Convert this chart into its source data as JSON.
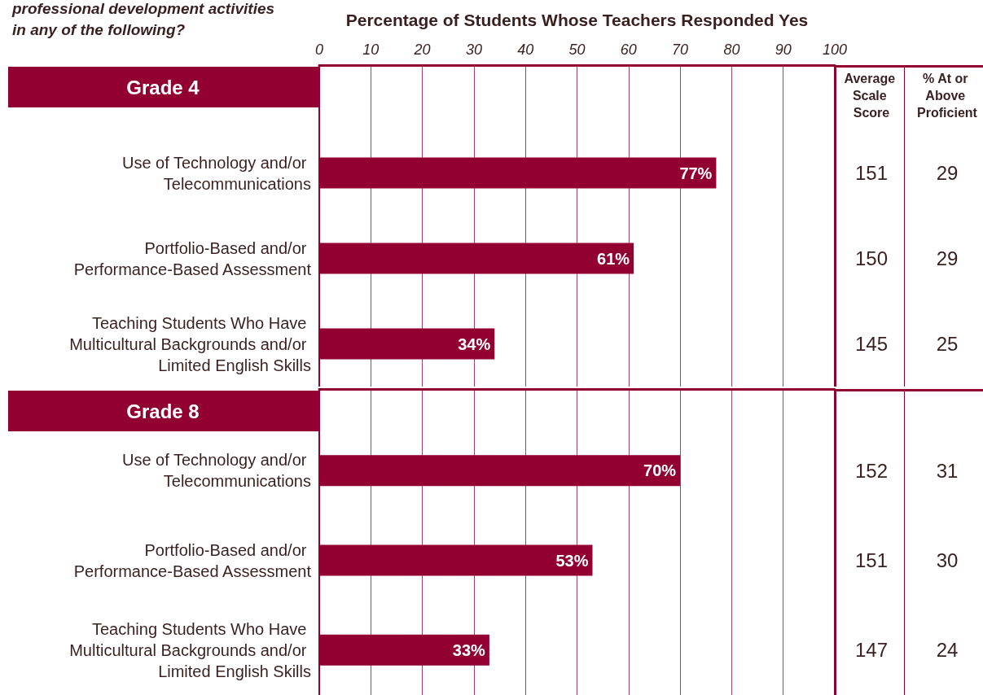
{
  "chart_data": [
    {
      "type": "bar",
      "orientation": "horizontal",
      "title": "professional development activities in any of the following?",
      "subtitle": "Grade 4",
      "xlabel": "Percentage of Students Whose Teachers Responded Yes",
      "categories": [
        "Use of Technology and/or Telecommunications",
        "Portfolio-Based and/or Performance-Based Assessment",
        "Teaching Students Who Have Multicultural Backgrounds and/or Limited English Skills"
      ],
      "values": [
        77,
        61,
        34
      ],
      "value_labels": [
        "77%",
        "61%",
        "34%"
      ],
      "color": "#910030",
      "xlim": [
        0,
        100
      ],
      "xticks": [
        0,
        10,
        20,
        30,
        40,
        50,
        60,
        70,
        80,
        90,
        100
      ],
      "grid": "x",
      "annotations": [
        "Average Scale Score",
        "% At or Above Proficient",
        "151",
        "29",
        "150",
        "29",
        "145",
        "25"
      ]
    },
    {
      "type": "bar",
      "orientation": "horizontal",
      "subtitle": "Grade 8",
      "categories": [
        "Use of Technology and/or Telecommunications",
        "Portfolio-Based and/or Performance-Based Assessment",
        "Teaching Students Who Have Multicultural Backgrounds and/or Limited English Skills"
      ],
      "values": [
        70,
        53,
        33
      ],
      "value_labels": [
        "70%",
        "53%",
        "33%"
      ],
      "color": "#910030",
      "xlim": [
        0,
        100
      ],
      "xticks": [
        0,
        10,
        20,
        30,
        40,
        50,
        60,
        70,
        80,
        90,
        100
      ],
      "grid": "x",
      "tick_labels": "y",
      "annotations": [
        "152",
        "31",
        "151",
        "30",
        "147",
        "24"
      ]
    }
  ]
}
